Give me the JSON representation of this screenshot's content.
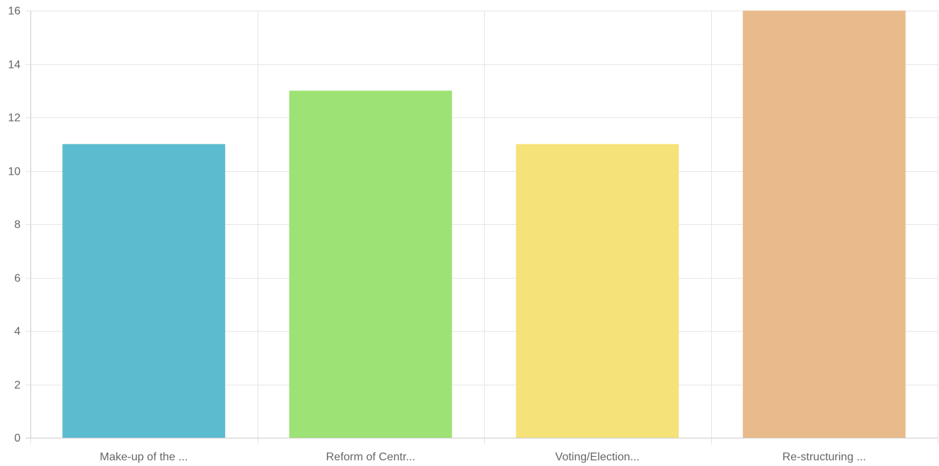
{
  "chart_data": {
    "type": "bar",
    "categories": [
      "Make-up of the ...",
      "Reform of Centr...",
      "Voting/Election...",
      "Re-structuring ..."
    ],
    "values": [
      11,
      13,
      11,
      16
    ],
    "colors": [
      "#5bbccf",
      "#9de274",
      "#f5e278",
      "#e9bb8c"
    ],
    "ylim": [
      0,
      16
    ],
    "yticks": [
      0,
      2,
      4,
      6,
      8,
      10,
      12,
      14,
      16
    ],
    "grid": true,
    "title": "",
    "xlabel": "",
    "ylabel": ""
  }
}
